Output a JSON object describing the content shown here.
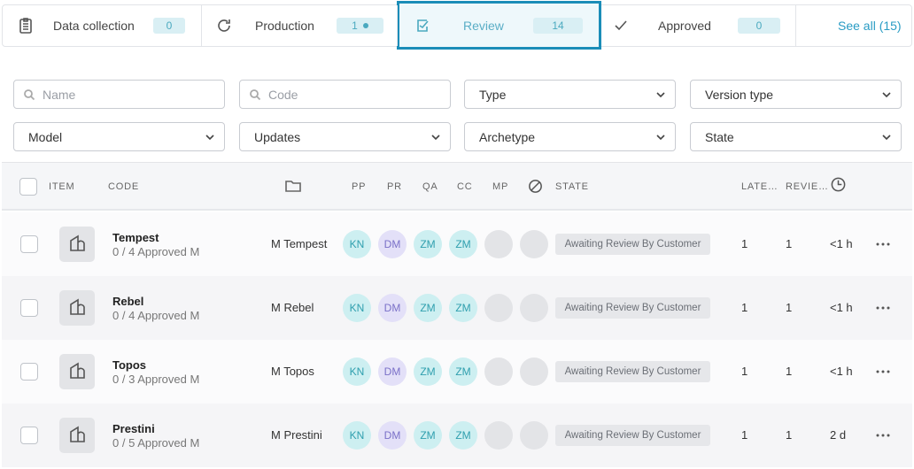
{
  "tabs": [
    {
      "label": "Data collection",
      "count": 0
    },
    {
      "label": "Production",
      "count": 1
    },
    {
      "label": "Review",
      "count": 14
    },
    {
      "label": "Approved",
      "count": 0
    }
  ],
  "see_all": "See all (15)",
  "filters": {
    "search": [
      "Name",
      "Code"
    ],
    "dropdowns": [
      "Type",
      "Version type",
      "Model",
      "Updates",
      "Archetype",
      "State"
    ]
  },
  "table": {
    "headers": [
      "ITEM",
      "CODE",
      "PP",
      "PR",
      "QA",
      "CC",
      "MP",
      "STATE",
      "LATE…",
      "REVIE…"
    ],
    "rows": [
      {
        "name": "Tempest",
        "subtitle": "0 / 4 Approved M",
        "code": "M Tempest",
        "avatars": [
          "KN",
          "DM",
          "ZM",
          "ZM"
        ],
        "state": "Awaiting Review By Customer",
        "latest": 1,
        "reviews": 1,
        "time": "<1 h"
      },
      {
        "name": "Rebel",
        "subtitle": "0 / 4 Approved M",
        "code": "M Rebel",
        "avatars": [
          "KN",
          "DM",
          "ZM",
          "ZM"
        ],
        "state": "Awaiting Review By Customer",
        "latest": 1,
        "reviews": 1,
        "time": "<1 h"
      },
      {
        "name": "Topos",
        "subtitle": "0 / 3 Approved M",
        "code": "M Topos",
        "avatars": [
          "KN",
          "DM",
          "ZM",
          "ZM"
        ],
        "state": "Awaiting Review By Customer",
        "latest": 1,
        "reviews": 1,
        "time": "<1 h"
      },
      {
        "name": "Prestini",
        "subtitle": "0 / 5 Approved M",
        "code": "M Prestini",
        "avatars": [
          "KN",
          "DM",
          "ZM",
          "ZM"
        ],
        "state": "Awaiting Review By Customer",
        "latest": 1,
        "reviews": 1,
        "time": "2 d"
      }
    ]
  }
}
